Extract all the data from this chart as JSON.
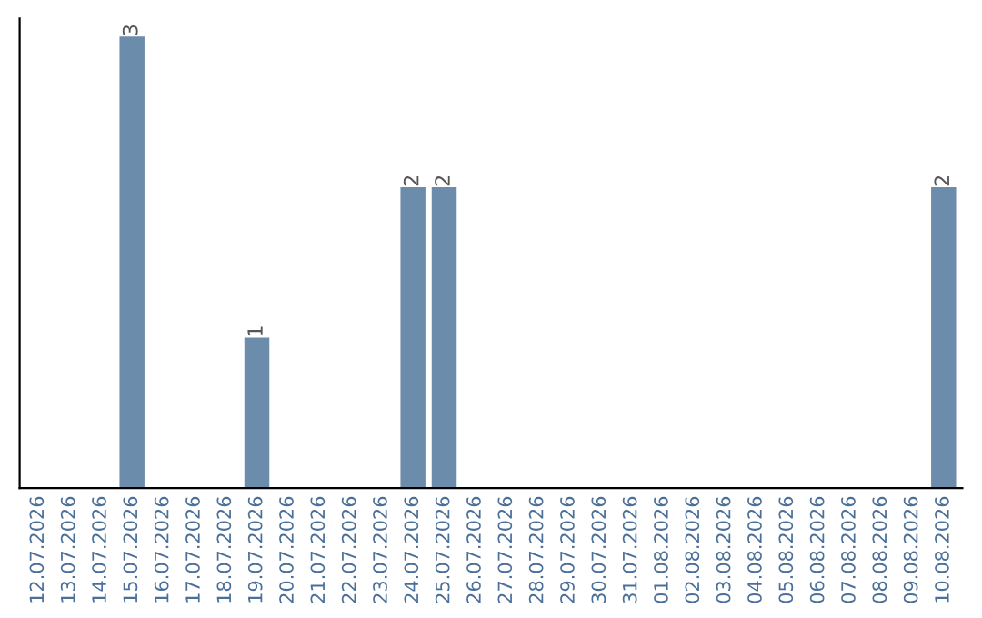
{
  "chart_data": {
    "type": "bar",
    "categories": [
      "12.07.2026",
      "13.07.2026",
      "14.07.2026",
      "15.07.2026",
      "16.07.2026",
      "17.07.2026",
      "18.07.2026",
      "19.07.2026",
      "20.07.2026",
      "21.07.2026",
      "22.07.2026",
      "23.07.2026",
      "24.07.2026",
      "25.07.2026",
      "26.07.2026",
      "27.07.2026",
      "28.07.2026",
      "29.07.2026",
      "30.07.2026",
      "31.07.2026",
      "01.08.2026",
      "02.08.2026",
      "03.08.2026",
      "04.08.2026",
      "05.08.2026",
      "06.08.2026",
      "07.08.2026",
      "08.08.2026",
      "09.08.2026",
      "10.08.2026"
    ],
    "values": [
      0,
      0,
      0,
      3,
      0,
      0,
      0,
      1,
      0,
      0,
      0,
      0,
      2,
      2,
      0,
      0,
      0,
      0,
      0,
      0,
      0,
      0,
      0,
      0,
      0,
      0,
      0,
      0,
      0,
      2
    ],
    "value_labels": [
      null,
      null,
      null,
      "3",
      null,
      null,
      null,
      "1",
      null,
      null,
      null,
      null,
      "2",
      "2",
      null,
      null,
      null,
      null,
      null,
      null,
      null,
      null,
      null,
      null,
      null,
      null,
      null,
      null,
      null,
      "2"
    ],
    "color": "#6c8cab",
    "tick_labels": "x",
    "grid": false,
    "legend": false
  }
}
